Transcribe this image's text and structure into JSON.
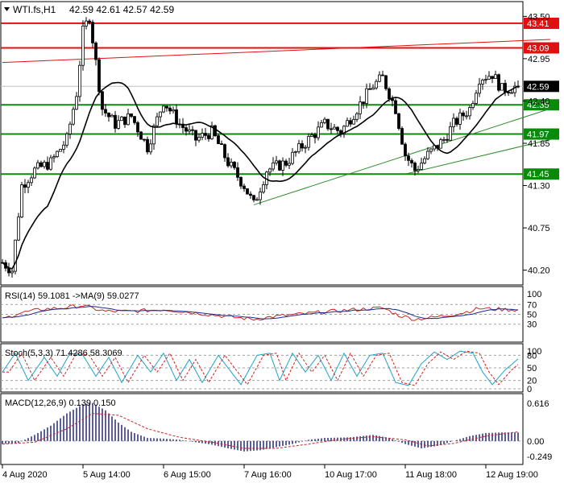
{
  "header": {
    "symbol": "WTI.fs,H1",
    "ohlc": "42.59 42.61 42.57 42.59"
  },
  "colors": {
    "resistance": "#e01010",
    "support": "#0a8a0a",
    "trend": "#2e8b2e",
    "ma": "#000000",
    "rsi_main": "#1a2a8a",
    "rsi_signal": "#d02020",
    "stoch_main": "#20a0c8",
    "stoch_signal": "#d02020",
    "macd_hist": "#1a1a6a",
    "macd_signal": "#d02020",
    "candle": "#000000",
    "price_bg": "#000000"
  },
  "chart_data": [
    {
      "type": "candlestick",
      "title": "WTI.fs,H1",
      "ohlc_label": "42.59 42.61 42.57 42.59",
      "current_price": 42.59,
      "current_price_label": "42.59",
      "ylim": [
        40.05,
        43.65
      ],
      "yticks": [
        "43.50",
        "42.95",
        "42.40",
        "41.85",
        "41.30",
        "40.75",
        "40.20"
      ],
      "ytick_values": [
        43.5,
        42.95,
        42.4,
        41.85,
        41.3,
        40.75,
        40.2
      ],
      "xticks": [
        "4 Aug 2020",
        "5 Aug 14:00",
        "6 Aug 15:00",
        "7 Aug 16:00",
        "10 Aug 17:00",
        "11 Aug 18:00",
        "12 Aug 19:00"
      ],
      "xtick_index": [
        0,
        25,
        50,
        75,
        100,
        125,
        150
      ],
      "bar_count": 160,
      "resistance_levels": [
        {
          "value": 43.41,
          "label": "43.41"
        },
        {
          "value": 43.09,
          "label": "43.09"
        }
      ],
      "support_levels": [
        {
          "value": 42.35,
          "label": "42.35"
        },
        {
          "value": 41.97,
          "label": "41.97"
        },
        {
          "value": 41.45,
          "label": "41.45"
        }
      ],
      "keypoints": [
        [
          0,
          40.3
        ],
        [
          3,
          40.2
        ],
        [
          6,
          41.3
        ],
        [
          10,
          41.5
        ],
        [
          15,
          41.6
        ],
        [
          20,
          41.9
        ],
        [
          23,
          42.5
        ],
        [
          25,
          43.3
        ],
        [
          27,
          43.5
        ],
        [
          29,
          42.9
        ],
        [
          31,
          42.3
        ],
        [
          35,
          42.1
        ],
        [
          40,
          42.2
        ],
        [
          45,
          41.8
        ],
        [
          50,
          42.4
        ],
        [
          55,
          42.1
        ],
        [
          60,
          41.9
        ],
        [
          65,
          42.0
        ],
        [
          70,
          41.6
        ],
        [
          75,
          41.3
        ],
        [
          78,
          41.05
        ],
        [
          82,
          41.5
        ],
        [
          88,
          41.6
        ],
        [
          95,
          41.9
        ],
        [
          100,
          42.1
        ],
        [
          105,
          42.0
        ],
        [
          110,
          42.3
        ],
        [
          115,
          42.6
        ],
        [
          118,
          42.7
        ],
        [
          122,
          42.3
        ],
        [
          125,
          41.7
        ],
        [
          128,
          41.5
        ],
        [
          132,
          41.7
        ],
        [
          137,
          41.9
        ],
        [
          140,
          42.1
        ],
        [
          145,
          42.3
        ],
        [
          148,
          42.7
        ],
        [
          152,
          42.75
        ],
        [
          155,
          42.55
        ],
        [
          160,
          42.59
        ]
      ],
      "trend_lines": [
        {
          "from": [
            78,
            41.05
          ],
          "to": [
            170,
            42.3
          ]
        },
        {
          "from": [
            125,
            41.45
          ],
          "to": [
            170,
            41.9
          ]
        },
        {
          "from": [
            0,
            42.9
          ],
          "to": [
            170,
            43.2
          ]
        }
      ]
    },
    {
      "type": "line",
      "title": "RSI(14) 59.1081 ->MA(9) 59.0277",
      "ylim": [
        0,
        100
      ],
      "yticks": [
        "70",
        "50",
        "30"
      ],
      "ytick_values": [
        70,
        50,
        30
      ],
      "top_label": "100",
      "keypoints": [
        [
          0,
          40
        ],
        [
          5,
          52
        ],
        [
          12,
          60
        ],
        [
          20,
          64
        ],
        [
          25,
          68
        ],
        [
          28,
          62
        ],
        [
          32,
          56
        ],
        [
          40,
          56
        ],
        [
          50,
          60
        ],
        [
          60,
          53
        ],
        [
          70,
          45
        ],
        [
          78,
          40
        ],
        [
          85,
          46
        ],
        [
          92,
          50
        ],
        [
          100,
          55
        ],
        [
          110,
          60
        ],
        [
          118,
          63
        ],
        [
          123,
          48
        ],
        [
          128,
          40
        ],
        [
          135,
          45
        ],
        [
          142,
          52
        ],
        [
          148,
          62
        ],
        [
          155,
          60
        ],
        [
          160,
          59.1
        ]
      ]
    },
    {
      "type": "line",
      "title": "Stoch(5,3,3) 71.4286 58.3069",
      "ylim": [
        0,
        100
      ],
      "yticks": [
        "80",
        "50",
        "20",
        "0"
      ],
      "ytick_values": [
        80,
        50,
        20,
        0
      ],
      "top_label": "100",
      "keypoints": [
        [
          0,
          40
        ],
        [
          4,
          85
        ],
        [
          8,
          20
        ],
        [
          13,
          75
        ],
        [
          17,
          30
        ],
        [
          21,
          85
        ],
        [
          25,
          80
        ],
        [
          29,
          30
        ],
        [
          33,
          75
        ],
        [
          37,
          15
        ],
        [
          42,
          80
        ],
        [
          46,
          40
        ],
        [
          50,
          85
        ],
        [
          54,
          20
        ],
        [
          58,
          70
        ],
        [
          62,
          15
        ],
        [
          67,
          80
        ],
        [
          71,
          40
        ],
        [
          74,
          10
        ],
        [
          79,
          80
        ],
        [
          83,
          85
        ],
        [
          86,
          20
        ],
        [
          90,
          85
        ],
        [
          94,
          40
        ],
        [
          98,
          80
        ],
        [
          102,
          20
        ],
        [
          106,
          85
        ],
        [
          110,
          30
        ],
        [
          114,
          80
        ],
        [
          118,
          85
        ],
        [
          122,
          15
        ],
        [
          126,
          8
        ],
        [
          130,
          60
        ],
        [
          134,
          88
        ],
        [
          138,
          70
        ],
        [
          142,
          90
        ],
        [
          146,
          85
        ],
        [
          149,
          40
        ],
        [
          152,
          10
        ],
        [
          156,
          45
        ],
        [
          160,
          71.4
        ]
      ]
    },
    {
      "type": "bar",
      "title": "MACD(12,26,9) 0.139 0.150",
      "ylim": [
        -0.33,
        0.72
      ],
      "yticks": [
        "0.616",
        "0.00",
        "-0.249"
      ],
      "ytick_values": [
        0.616,
        0.0,
        -0.249
      ],
      "top_label": "0.616",
      "keypoints": [
        [
          0,
          -0.05
        ],
        [
          5,
          -0.03
        ],
        [
          10,
          0.1
        ],
        [
          15,
          0.25
        ],
        [
          20,
          0.45
        ],
        [
          25,
          0.6
        ],
        [
          28,
          0.62
        ],
        [
          32,
          0.5
        ],
        [
          36,
          0.3
        ],
        [
          40,
          0.15
        ],
        [
          45,
          0.05
        ],
        [
          50,
          0.04
        ],
        [
          55,
          0.02
        ],
        [
          60,
          -0.02
        ],
        [
          65,
          -0.06
        ],
        [
          70,
          -0.12
        ],
        [
          75,
          -0.17
        ],
        [
          80,
          -0.15
        ],
        [
          85,
          -0.1
        ],
        [
          90,
          -0.05
        ],
        [
          95,
          0.02
        ],
        [
          100,
          0.05
        ],
        [
          108,
          0.06
        ],
        [
          115,
          0.1
        ],
        [
          120,
          0.05
        ],
        [
          125,
          -0.05
        ],
        [
          130,
          -0.12
        ],
        [
          135,
          -0.08
        ],
        [
          140,
          0.0
        ],
        [
          145,
          0.08
        ],
        [
          150,
          0.13
        ],
        [
          155,
          0.14
        ],
        [
          160,
          0.139
        ]
      ],
      "signal_keypoints": [
        [
          0,
          -0.05
        ],
        [
          10,
          -0.02
        ],
        [
          20,
          0.2
        ],
        [
          28,
          0.45
        ],
        [
          36,
          0.42
        ],
        [
          45,
          0.2
        ],
        [
          55,
          0.06
        ],
        [
          65,
          -0.02
        ],
        [
          75,
          -0.12
        ],
        [
          85,
          -0.12
        ],
        [
          95,
          -0.05
        ],
        [
          105,
          0.03
        ],
        [
          115,
          0.07
        ],
        [
          125,
          0.02
        ],
        [
          132,
          -0.08
        ],
        [
          140,
          -0.04
        ],
        [
          150,
          0.08
        ],
        [
          160,
          0.15
        ]
      ]
    }
  ]
}
